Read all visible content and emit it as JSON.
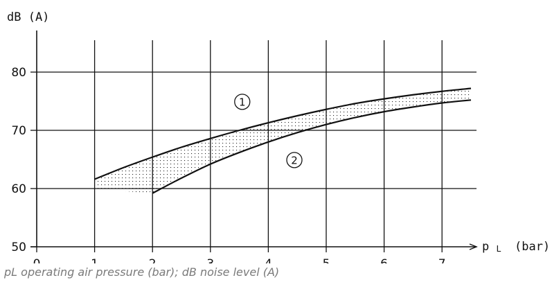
{
  "chart_data": {
    "type": "line",
    "ylabel": "dB (A)",
    "xlabel_main": "p",
    "xlabel_sub": "L",
    "xlabel_unit": "(bar)",
    "xlim": [
      0,
      7.5
    ],
    "ylim": [
      50,
      85
    ],
    "x_ticks": [
      0,
      1,
      2,
      3,
      4,
      5,
      6,
      7
    ],
    "y_ticks": [
      50,
      60,
      70,
      80
    ],
    "grid": true,
    "shaded_band_between_series": true,
    "series": [
      {
        "id": "curve-1",
        "label": "1",
        "label_position": [
          3.55,
          74.9
        ],
        "x": [
          1.0,
          1.5,
          2.0,
          2.5,
          3.0,
          3.5,
          4.0,
          4.5,
          5.0,
          5.5,
          6.0,
          6.5,
          7.0,
          7.5
        ],
        "y": [
          61.6,
          63.6,
          65.4,
          67.1,
          68.6,
          70.0,
          71.3,
          72.5,
          73.6,
          74.6,
          75.4,
          76.1,
          76.7,
          77.2
        ]
      },
      {
        "id": "curve-2",
        "label": "2",
        "label_position": [
          4.45,
          64.9
        ],
        "x": [
          2.0,
          2.5,
          3.0,
          3.5,
          4.0,
          4.5,
          5.0,
          5.5,
          6.0,
          6.5,
          7.0,
          7.5
        ],
        "y": [
          59.2,
          61.8,
          64.2,
          66.2,
          68.0,
          69.6,
          71.0,
          72.2,
          73.2,
          74.0,
          74.7,
          75.2
        ]
      }
    ]
  },
  "caption": "pL operating air pressure (bar); dB noise level (A)"
}
